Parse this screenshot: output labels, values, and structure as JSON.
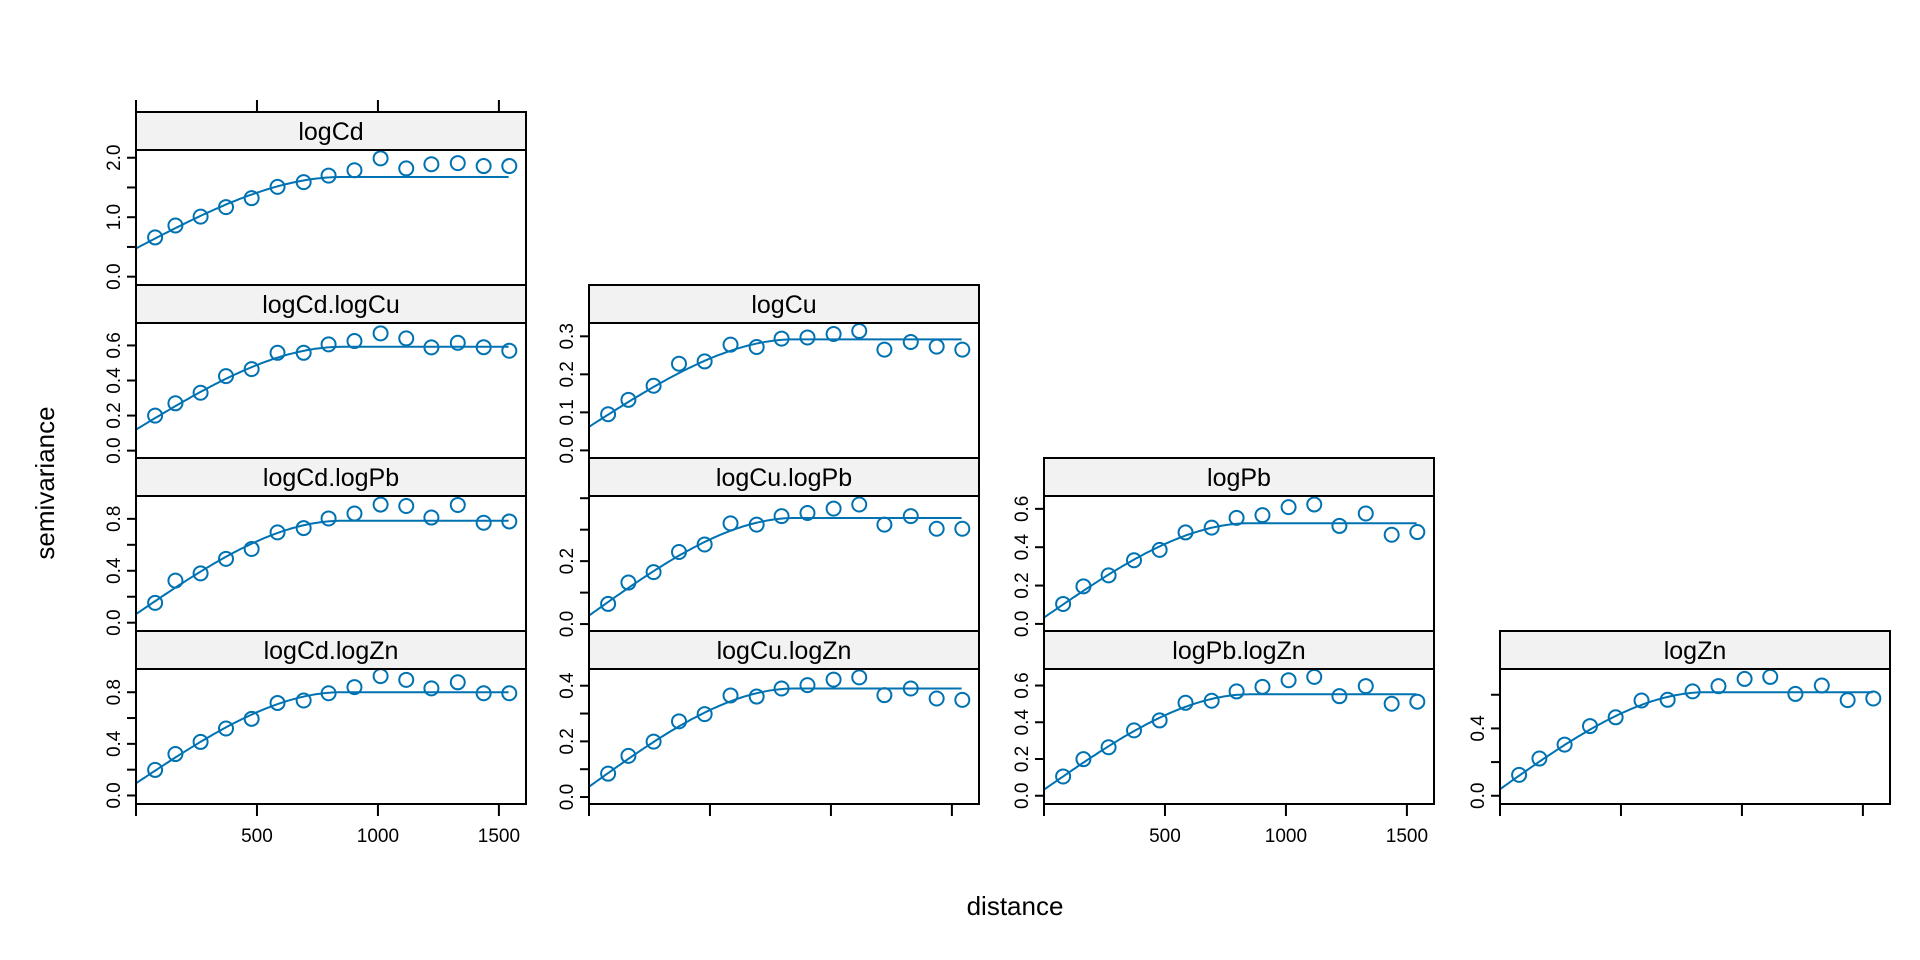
{
  "chart_data": {
    "type": "scatter",
    "title": "",
    "xlabel": "distance",
    "ylabel": "semivariance",
    "xlim": [
      0,
      1612
    ],
    "x_ticks": [
      {
        "v": 500,
        "label": "500"
      },
      {
        "v": 1000,
        "label": "1000"
      },
      {
        "v": 1500,
        "label": "1500"
      }
    ],
    "grid": false,
    "colors": {
      "series": "#0072b2",
      "strip": "#f2f2f2",
      "frame": "#000000"
    },
    "distances": [
      79,
      163,
      267,
      372,
      478,
      585,
      693,
      796,
      903,
      1011,
      1117,
      1221,
      1330,
      1437,
      1543
    ],
    "panels": [
      {
        "name": "logCd",
        "col": 0,
        "row": 0,
        "ylim": [
          -0.14,
          2.13
        ],
        "yticks": [
          {
            "v": 0,
            "label": "0.0"
          },
          {
            "v": 0.5,
            "label": ""
          },
          {
            "v": 1,
            "label": "1.0"
          },
          {
            "v": 1.5,
            "label": ""
          },
          {
            "v": 2,
            "label": "2.0"
          }
        ],
        "values": [
          0.66,
          0.86,
          1.01,
          1.17,
          1.32,
          1.51,
          1.59,
          1.7,
          1.79,
          1.99,
          1.82,
          1.89,
          1.91,
          1.86,
          1.86
        ],
        "model": {
          "nugget": 0.475,
          "sill": 1.676,
          "range": 850
        }
      },
      {
        "name": "logCd.logCu",
        "col": 0,
        "row": 1,
        "ylim": [
          -0.042,
          0.728
        ],
        "yticks": [
          {
            "v": 0,
            "label": "0.0"
          },
          {
            "v": 0.2,
            "label": "0.2"
          },
          {
            "v": 0.4,
            "label": "0.4"
          },
          {
            "v": 0.6,
            "label": "0.6"
          }
        ],
        "values": [
          0.2,
          0.27,
          0.33,
          0.425,
          0.465,
          0.558,
          0.558,
          0.606,
          0.625,
          0.669,
          0.64,
          0.589,
          0.615,
          0.59,
          0.57
        ],
        "model": {
          "nugget": 0.12,
          "sill": 0.592,
          "range": 850
        }
      },
      {
        "name": "logCu",
        "col": 1,
        "row": 1,
        "ylim": [
          -0.02,
          0.335
        ],
        "yticks": [
          {
            "v": 0,
            "label": "0.0"
          },
          {
            "v": 0.1,
            "label": "0.1"
          },
          {
            "v": 0.2,
            "label": "0.2"
          },
          {
            "v": 0.3,
            "label": "0.3"
          }
        ],
        "values": [
          0.095,
          0.133,
          0.17,
          0.228,
          0.234,
          0.278,
          0.272,
          0.294,
          0.297,
          0.306,
          0.314,
          0.265,
          0.285,
          0.273,
          0.265
        ],
        "model": {
          "nugget": 0.062,
          "sill": 0.292,
          "range": 850
        }
      },
      {
        "name": "logCd.logPb",
        "col": 0,
        "row": 2,
        "ylim": [
          -0.064,
          0.976
        ],
        "yticks": [
          {
            "v": 0,
            "label": "0.0"
          },
          {
            "v": 0.2,
            "label": ""
          },
          {
            "v": 0.4,
            "label": "0.4"
          },
          {
            "v": 0.6,
            "label": ""
          },
          {
            "v": 0.8,
            "label": "0.8"
          }
        ],
        "values": [
          0.153,
          0.324,
          0.38,
          0.492,
          0.568,
          0.696,
          0.729,
          0.803,
          0.841,
          0.91,
          0.899,
          0.81,
          0.907,
          0.77,
          0.78
        ],
        "model": {
          "nugget": 0.066,
          "sill": 0.785,
          "range": 850
        }
      },
      {
        "name": "logCu.logPb",
        "col": 1,
        "row": 2,
        "ylim": [
          -0.022,
          0.407
        ],
        "yticks": [
          {
            "v": 0,
            "label": "0.0"
          },
          {
            "v": 0.1,
            "label": ""
          },
          {
            "v": 0.2,
            "label": "0.2"
          },
          {
            "v": 0.3,
            "label": ""
          },
          {
            "v": 0.4,
            "label": ""
          }
        ],
        "values": [
          0.064,
          0.132,
          0.165,
          0.229,
          0.253,
          0.32,
          0.316,
          0.343,
          0.353,
          0.367,
          0.38,
          0.316,
          0.343,
          0.303,
          0.303
        ],
        "model": {
          "nugget": 0.027,
          "sill": 0.337,
          "range": 850
        }
      },
      {
        "name": "logPb",
        "col": 2,
        "row": 2,
        "ylim": [
          -0.037,
          0.667
        ],
        "yticks": [
          {
            "v": 0,
            "label": "0.0"
          },
          {
            "v": 0.2,
            "label": "0.2"
          },
          {
            "v": 0.4,
            "label": "0.4"
          },
          {
            "v": 0.6,
            "label": "0.6"
          }
        ],
        "values": [
          0.104,
          0.196,
          0.253,
          0.332,
          0.386,
          0.477,
          0.502,
          0.553,
          0.567,
          0.609,
          0.623,
          0.511,
          0.576,
          0.465,
          0.479
        ],
        "model": {
          "nugget": 0.033,
          "sill": 0.525,
          "range": 850
        }
      },
      {
        "name": "logCd.logZn",
        "col": 0,
        "row": 3,
        "ylim": [
          -0.066,
          0.98
        ],
        "yticks": [
          {
            "v": 0,
            "label": "0.0"
          },
          {
            "v": 0.2,
            "label": ""
          },
          {
            "v": 0.4,
            "label": "0.4"
          },
          {
            "v": 0.6,
            "label": ""
          },
          {
            "v": 0.8,
            "label": "0.8"
          }
        ],
        "values": [
          0.198,
          0.321,
          0.415,
          0.519,
          0.594,
          0.717,
          0.736,
          0.792,
          0.84,
          0.925,
          0.896,
          0.83,
          0.877,
          0.792,
          0.792
        ],
        "model": {
          "nugget": 0.094,
          "sill": 0.8,
          "range": 850
        }
      },
      {
        "name": "logCu.logZn",
        "col": 1,
        "row": 3,
        "ylim": [
          -0.025,
          0.46
        ],
        "yticks": [
          {
            "v": 0,
            "label": "0.0"
          },
          {
            "v": 0.1,
            "label": ""
          },
          {
            "v": 0.2,
            "label": "0.2"
          },
          {
            "v": 0.3,
            "label": ""
          },
          {
            "v": 0.4,
            "label": "0.4"
          }
        ],
        "values": [
          0.084,
          0.148,
          0.199,
          0.272,
          0.298,
          0.365,
          0.361,
          0.39,
          0.402,
          0.422,
          0.43,
          0.366,
          0.39,
          0.354,
          0.349
        ],
        "model": {
          "nugget": 0.037,
          "sill": 0.39,
          "range": 850
        }
      },
      {
        "name": "logPb.logZn",
        "col": 2,
        "row": 3,
        "ylim": [
          -0.045,
          0.69
        ],
        "yticks": [
          {
            "v": 0,
            "label": "0.0"
          },
          {
            "v": 0.2,
            "label": "0.2"
          },
          {
            "v": 0.4,
            "label": "0.4"
          },
          {
            "v": 0.6,
            "label": "0.6"
          }
        ],
        "values": [
          0.105,
          0.199,
          0.264,
          0.356,
          0.41,
          0.506,
          0.517,
          0.568,
          0.593,
          0.629,
          0.647,
          0.542,
          0.597,
          0.501,
          0.512
        ],
        "model": {
          "nugget": 0.033,
          "sill": 0.552,
          "range": 850
        }
      },
      {
        "name": "logZn",
        "col": 3,
        "row": 3,
        "ylim": [
          -0.049,
          0.753
        ],
        "yticks": [
          {
            "v": 0,
            "label": "0.0"
          },
          {
            "v": 0.2,
            "label": ""
          },
          {
            "v": 0.4,
            "label": "0.4"
          },
          {
            "v": 0.6,
            "label": ""
          }
        ],
        "values": [
          0.124,
          0.221,
          0.304,
          0.414,
          0.466,
          0.566,
          0.57,
          0.62,
          0.651,
          0.694,
          0.706,
          0.605,
          0.655,
          0.568,
          0.578
        ],
        "model": {
          "nugget": 0.039,
          "sill": 0.615,
          "range": 850
        }
      }
    ]
  }
}
